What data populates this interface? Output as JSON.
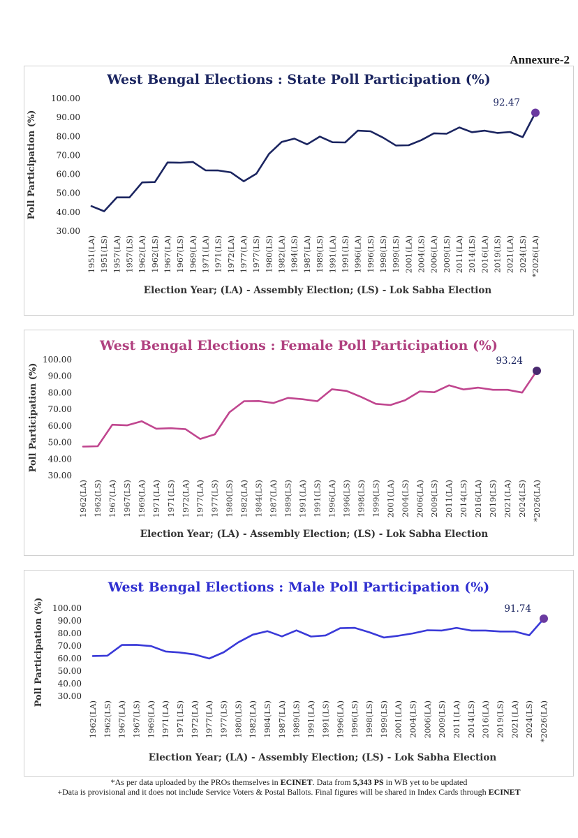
{
  "annexure": "Annexure-2",
  "chart_data": [
    {
      "type": "line",
      "title": "West Bengal Elections : State Poll Participation (%)",
      "xlabel": "Election Year; (LA) - Assembly Election; (LS) - Lok Sabha Election",
      "ylabel": "Poll Participation (%)",
      "ylim": [
        30,
        100
      ],
      "yticks": [
        "30.00",
        "40.00",
        "50.00",
        "60.00",
        "70.00",
        "80.00",
        "90.00",
        "100.00"
      ],
      "grid": false,
      "color": "#1b2560",
      "title_color": "#1b2560",
      "marker_color": "#6a3aa0",
      "categories": [
        "1951(LA)",
        "1951(LS)",
        "1957(LA)",
        "1957(LS)",
        "1962(LA)",
        "1962(LS)",
        "1967(LA)",
        "1967(LS)",
        "1969(LA)",
        "1971(LA)",
        "1971(LS)",
        "1972(LA)",
        "1977(LA)",
        "1977(LS)",
        "1980(LS)",
        "1982(LA)",
        "1984(LS)",
        "1987(LA)",
        "1989(LS)",
        "1991(LA)",
        "1991(LS)",
        "1996(LA)",
        "1996(LS)",
        "1998(LS)",
        "1999(LS)",
        "2001(LA)",
        "2004(LS)",
        "2006(LA)",
        "2009(LS)",
        "2011(LA)",
        "2014(LS)",
        "2016(LA)",
        "2019(LS)",
        "2021(LA)",
        "2024(LS)",
        "*2026(LA)"
      ],
      "values": [
        43.2,
        40.5,
        47.8,
        47.8,
        55.7,
        55.9,
        66.2,
        66.1,
        66.5,
        62.1,
        62.0,
        61.0,
        56.3,
        60.3,
        70.8,
        77.1,
        78.8,
        75.8,
        79.9,
        76.9,
        76.8,
        83.0,
        82.7,
        79.3,
        75.2,
        75.3,
        78.0,
        81.6,
        81.4,
        84.7,
        82.2,
        83.0,
        81.8,
        82.3,
        79.6,
        92.47
      ],
      "annotation": "92.47"
    },
    {
      "type": "line",
      "title": "West Bengal Elections : Female Poll Participation (%)",
      "xlabel": "Election Year; (LA) - Assembly Election; (LS) - Lok Sabha Election",
      "ylabel": "Poll Participation (%)",
      "ylim": [
        30,
        100
      ],
      "yticks": [
        "30.00",
        "40.00",
        "50.00",
        "60.00",
        "70.00",
        "80.00",
        "90.00",
        "100.00"
      ],
      "grid": false,
      "color": "#c0468f",
      "title_color": "#b0407f",
      "marker_color": "#4a2a70",
      "categories": [
        "1962(LA)",
        "1962(LS)",
        "1967(LA)",
        "1967(LS)",
        "1969(LA)",
        "1971(LA)",
        "1971(LS)",
        "1972(LA)",
        "1977(LA)",
        "1977(LS)",
        "1980(LS)",
        "1982(LA)",
        "1984(LS)",
        "1987(LA)",
        "1989(LS)",
        "1991(LA)",
        "1991(LS)",
        "1996(LA)",
        "1996(LS)",
        "1998(LS)",
        "1999(LS)",
        "2001(LA)",
        "2004(LS)",
        "2006(LA)",
        "2009(LS)",
        "2011(LA)",
        "2014(LS)",
        "2016(LA)",
        "2019(LS)",
        "2021(LA)",
        "2024(LS)",
        "*2026(LA)"
      ],
      "values": [
        47.5,
        47.7,
        60.7,
        60.3,
        62.8,
        58.3,
        58.6,
        58.0,
        52.1,
        54.9,
        68.2,
        74.9,
        75.0,
        73.8,
        76.9,
        76.1,
        74.9,
        82.1,
        81.1,
        77.5,
        73.3,
        72.6,
        75.5,
        80.8,
        80.3,
        84.5,
        82.0,
        83.1,
        81.8,
        81.8,
        80.1,
        93.24
      ],
      "annotation": "93.24"
    },
    {
      "type": "line",
      "title": "West Bengal Elections : Male Poll Participation (%)",
      "xlabel": "Election Year; (LA) - Assembly Election; (LS) - Lok Sabha Election",
      "ylabel": "Poll Participation (%)",
      "ylim": [
        30,
        100
      ],
      "yticks": [
        "30.00",
        "40.00",
        "50.00",
        "60.00",
        "70.00",
        "80.00",
        "90.00",
        "100.00"
      ],
      "grid": false,
      "color": "#3a3ad8",
      "title_color": "#2f2fd0",
      "marker_color": "#6a3aa0",
      "categories": [
        "1962(LA)",
        "1962(LS)",
        "1967(LA)",
        "1967(LS)",
        "1969(LA)",
        "1971(LA)",
        "1971(LS)",
        "1972(LA)",
        "1977(LA)",
        "1977(LS)",
        "1980(LS)",
        "1982(LA)",
        "1984(LS)",
        "1987(LA)",
        "1989(LS)",
        "1991(LA)",
        "1991(LS)",
        "1996(LA)",
        "1996(LS)",
        "1998(LS)",
        "1999(LS)",
        "2001(LA)",
        "2004(LS)",
        "2006(LA)",
        "2009(LS)",
        "2011(LA)",
        "2014(LS)",
        "2016(LA)",
        "2019(LS)",
        "2021(LA)",
        "2024(LS)",
        "*2026(LA)"
      ],
      "values": [
        62.0,
        62.3,
        70.8,
        70.9,
        69.9,
        65.6,
        64.8,
        63.2,
        60.0,
        65.0,
        72.9,
        79.0,
        81.8,
        77.6,
        82.4,
        77.5,
        78.4,
        84.1,
        84.4,
        80.9,
        76.7,
        78.1,
        80.0,
        82.5,
        82.3,
        84.4,
        82.3,
        82.3,
        81.5,
        81.5,
        78.5,
        91.74
      ],
      "annotation": "91.74"
    }
  ],
  "footnote": {
    "line1_a": "*As per data uploaded by the PROs themselves in ",
    "line1_b": "ECINET",
    "line1_c": ". Data from ",
    "line1_d": "5,343 PS",
    "line1_e": " in WB yet to be updated",
    "line2_a": "+Data is provisional and it does not include Service Voters & Postal Ballots. Final figures will be shared in Index Cards through ",
    "line2_b": "ECINET"
  }
}
